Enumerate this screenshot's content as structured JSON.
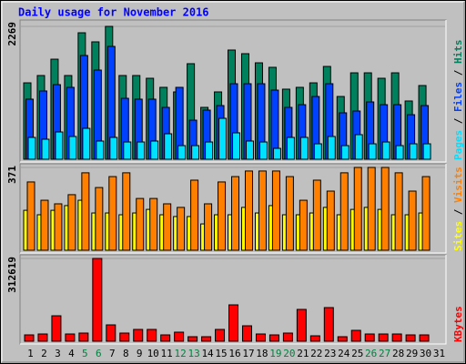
{
  "chart_data": [
    {
      "type": "bar",
      "title": "Daily usage for November 2016",
      "legend_separator": " / ",
      "ylim": [
        0,
        2269
      ],
      "yticks": [
        2269
      ],
      "series": [
        {
          "name": "Pages",
          "color": "#00e0ff",
          "values": [
            373,
            342,
            466,
            389,
            528,
            311,
            373,
            295,
            295,
            311,
            435,
            233,
            233,
            295,
            699,
            451,
            311,
            295,
            186,
            373,
            373,
            264,
            389,
            233,
            420,
            264,
            295,
            233,
            264,
            264,
            null
          ]
        },
        {
          "name": "Files",
          "color": "#0040ff",
          "values": [
            1026,
            1166,
            1274,
            1228,
            1772,
            1523,
            1927,
            1041,
            1026,
            1026,
            886,
            1228,
            668,
            839,
            917,
            1290,
            1290,
            1290,
            1181,
            886,
            932,
            1072,
            1290,
            793,
            824,
            979,
            932,
            932,
            761,
            917,
            null
          ]
        },
        {
          "name": "Hits",
          "color": "#00805c",
          "values": [
            1305,
            1430,
            1709,
            1430,
            2160,
            2005,
            2269,
            1430,
            1430,
            1383,
            1228,
            1150,
            1632,
            886,
            1150,
            1865,
            1803,
            1647,
            1570,
            1197,
            1228,
            1305,
            1585,
            1072,
            1476,
            1476,
            1383,
            1476,
            995,
            1259,
            null
          ]
        }
      ]
    },
    {
      "type": "bar",
      "legend_separator": " / ",
      "ylim": [
        0,
        371
      ],
      "yticks": [
        371
      ],
      "series": [
        {
          "name": "Sites",
          "color": "#ffff00",
          "values": [
            179,
            159,
            179,
            200,
            224,
            167,
            167,
            159,
            167,
            183,
            159,
            151,
            151,
            118,
            159,
            159,
            192,
            167,
            200,
            159,
            159,
            167,
            192,
            159,
            183,
            192,
            183,
            159,
            159,
            167,
            null
          ]
        },
        {
          "name": "Visits",
          "color": "#ff8000",
          "values": [
            306,
            224,
            208,
            249,
            347,
            281,
            330,
            347,
            232,
            232,
            208,
            192,
            314,
            208,
            306,
            330,
            355,
            355,
            355,
            330,
            224,
            314,
            265,
            347,
            371,
            371,
            371,
            347,
            265,
            330,
            null
          ]
        }
      ]
    },
    {
      "type": "bar",
      "ylim": [
        0,
        312619
      ],
      "yticks": [
        312619
      ],
      "categories": [
        "1",
        "2",
        "3",
        "4",
        "5",
        "6",
        "7",
        "8",
        "9",
        "10",
        "11",
        "12",
        "13",
        "14",
        "15",
        "16",
        "17",
        "18",
        "19",
        "20",
        "21",
        "22",
        "23",
        "24",
        "25",
        "26",
        "27",
        "28",
        "29",
        "30",
        "31"
      ],
      "category_colors": [
        "#000000",
        "#000000",
        "#000000",
        "#000000",
        "#008040",
        "#008040",
        "#000000",
        "#000000",
        "#000000",
        "#000000",
        "#000000",
        "#008040",
        "#008040",
        "#000000",
        "#000000",
        "#000000",
        "#000000",
        "#000000",
        "#008040",
        "#008040",
        "#000000",
        "#000000",
        "#000000",
        "#000000",
        "#000000",
        "#008040",
        "#008040",
        "#000000",
        "#000000",
        "#000000",
        "#000000"
      ],
      "series": [
        {
          "name": "KBytes",
          "color": "#ff0000",
          "values": [
            24046,
            27481,
            96183,
            27481,
            30917,
            312619,
            61834,
            30917,
            44657,
            44657,
            24046,
            34351,
            17176,
            17176,
            44657,
            137402,
            58398,
            27481,
            24046,
            30917,
            120227,
            20611,
            127097,
            17176,
            41222,
            27481,
            27481,
            27481,
            24046,
            24046,
            null
          ]
        }
      ]
    }
  ]
}
